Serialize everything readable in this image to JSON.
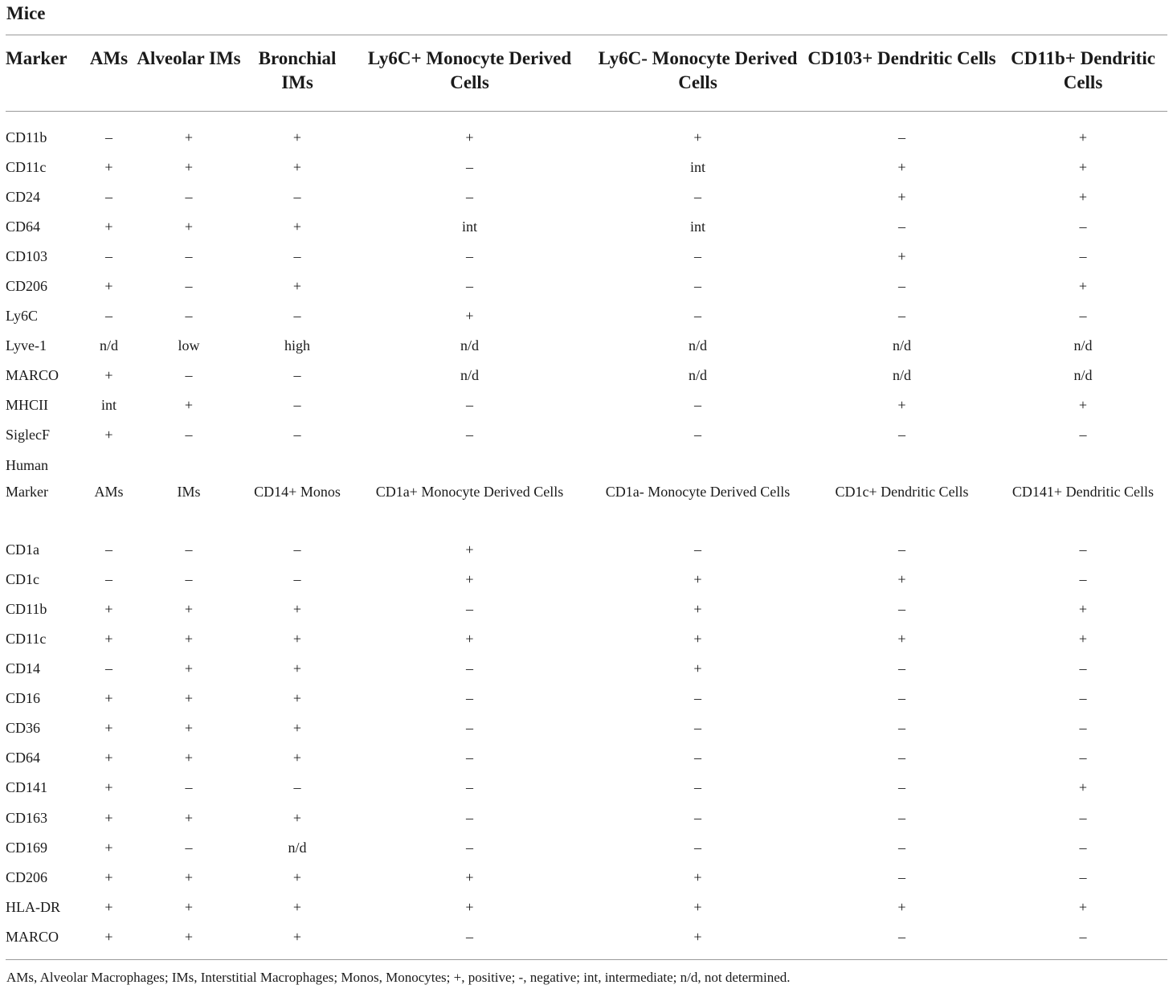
{
  "mice": {
    "title": "Mice",
    "headers": [
      "Marker",
      "AMs",
      "Alveolar IMs",
      "Bronchial IMs",
      "Ly6C+ Monocyte Derived Cells",
      "Ly6C- Monocyte Derived Cells",
      "CD103+ Dendritic Cells",
      "CD11b+ Dendritic Cells"
    ],
    "rows": [
      [
        "CD11b",
        "–",
        "+",
        "+",
        "+",
        "+",
        "–",
        "+"
      ],
      [
        "CD11c",
        "+",
        "+",
        "+",
        "–",
        "int",
        "+",
        "+"
      ],
      [
        "CD24",
        "–",
        "–",
        "–",
        "–",
        "–",
        "+",
        "+"
      ],
      [
        "CD64",
        "+",
        "+",
        "+",
        "int",
        "int",
        "–",
        "–"
      ],
      [
        "CD103",
        "–",
        "–",
        "–",
        "–",
        "–",
        "+",
        "–"
      ],
      [
        "CD206",
        "+",
        "–",
        "+",
        "–",
        "–",
        "–",
        "+"
      ],
      [
        "Ly6C",
        "–",
        "–",
        "–",
        "+",
        "–",
        "–",
        "–"
      ],
      [
        "Lyve-1",
        "n/d",
        "low",
        "high",
        "n/d",
        "n/d",
        "n/d",
        "n/d"
      ],
      [
        "MARCO",
        "+",
        "–",
        "–",
        "n/d",
        "n/d",
        "n/d",
        "n/d"
      ],
      [
        "MHCII",
        "int",
        "+",
        "–",
        "–",
        "–",
        "+",
        "+"
      ],
      [
        "SiglecF",
        "+",
        "–",
        "–",
        "–",
        "–",
        "–",
        "–"
      ]
    ]
  },
  "human": {
    "title": "Human",
    "headers": [
      "Marker",
      "AMs",
      "IMs",
      "CD14+ Monos",
      "CD1a+ Monocyte Derived Cells",
      "CD1a- Monocyte Derived Cells",
      "CD1c+ Dendritic Cells",
      "CD141+ Dendritic Cells"
    ],
    "rows": [
      [
        "CD1a",
        "–",
        "–",
        "–",
        "+",
        "–",
        "–",
        "–"
      ],
      [
        "CD1c",
        "–",
        "–",
        "–",
        "+",
        "+",
        "+",
        "–"
      ],
      [
        "CD11b",
        "+",
        "+",
        "+",
        "–",
        "+",
        "–",
        "+"
      ],
      [
        "CD11c",
        "+",
        "+",
        "+",
        "+",
        "+",
        "+",
        "+"
      ],
      [
        "CD14",
        "–",
        "+",
        "+",
        "–",
        "+",
        "–",
        "–"
      ],
      [
        "CD16",
        "+",
        "+",
        "+",
        "–",
        "–",
        "–",
        "–"
      ],
      [
        "CD36",
        "+",
        "+",
        "+",
        "–",
        "–",
        "–",
        "–"
      ],
      [
        "CD64",
        "+",
        "+",
        "+",
        "–",
        "–",
        "–",
        "–"
      ],
      [
        "CD141",
        "+",
        "–",
        "–",
        "–",
        "–",
        "–",
        "+"
      ],
      [
        "CD163",
        "+",
        "+",
        "+",
        "–",
        "–",
        "–",
        "–"
      ],
      [
        "CD169",
        "+",
        "–",
        "n/d",
        "–",
        "–",
        "–",
        "–"
      ],
      [
        "CD206",
        "+",
        "+",
        "+",
        "+",
        "+",
        "–",
        "–"
      ],
      [
        "HLA-DR",
        "+",
        "+",
        "+",
        "+",
        "+",
        "+",
        "+"
      ],
      [
        "MARCO",
        "+",
        "+",
        "+",
        "–",
        "+",
        "–",
        "–"
      ]
    ]
  },
  "footnote": "AMs, Alveolar Macrophages; IMs, Interstitial Macrophages; Monos, Monocytes; +, positive; -, negative; int, intermediate; n/d, not determined."
}
